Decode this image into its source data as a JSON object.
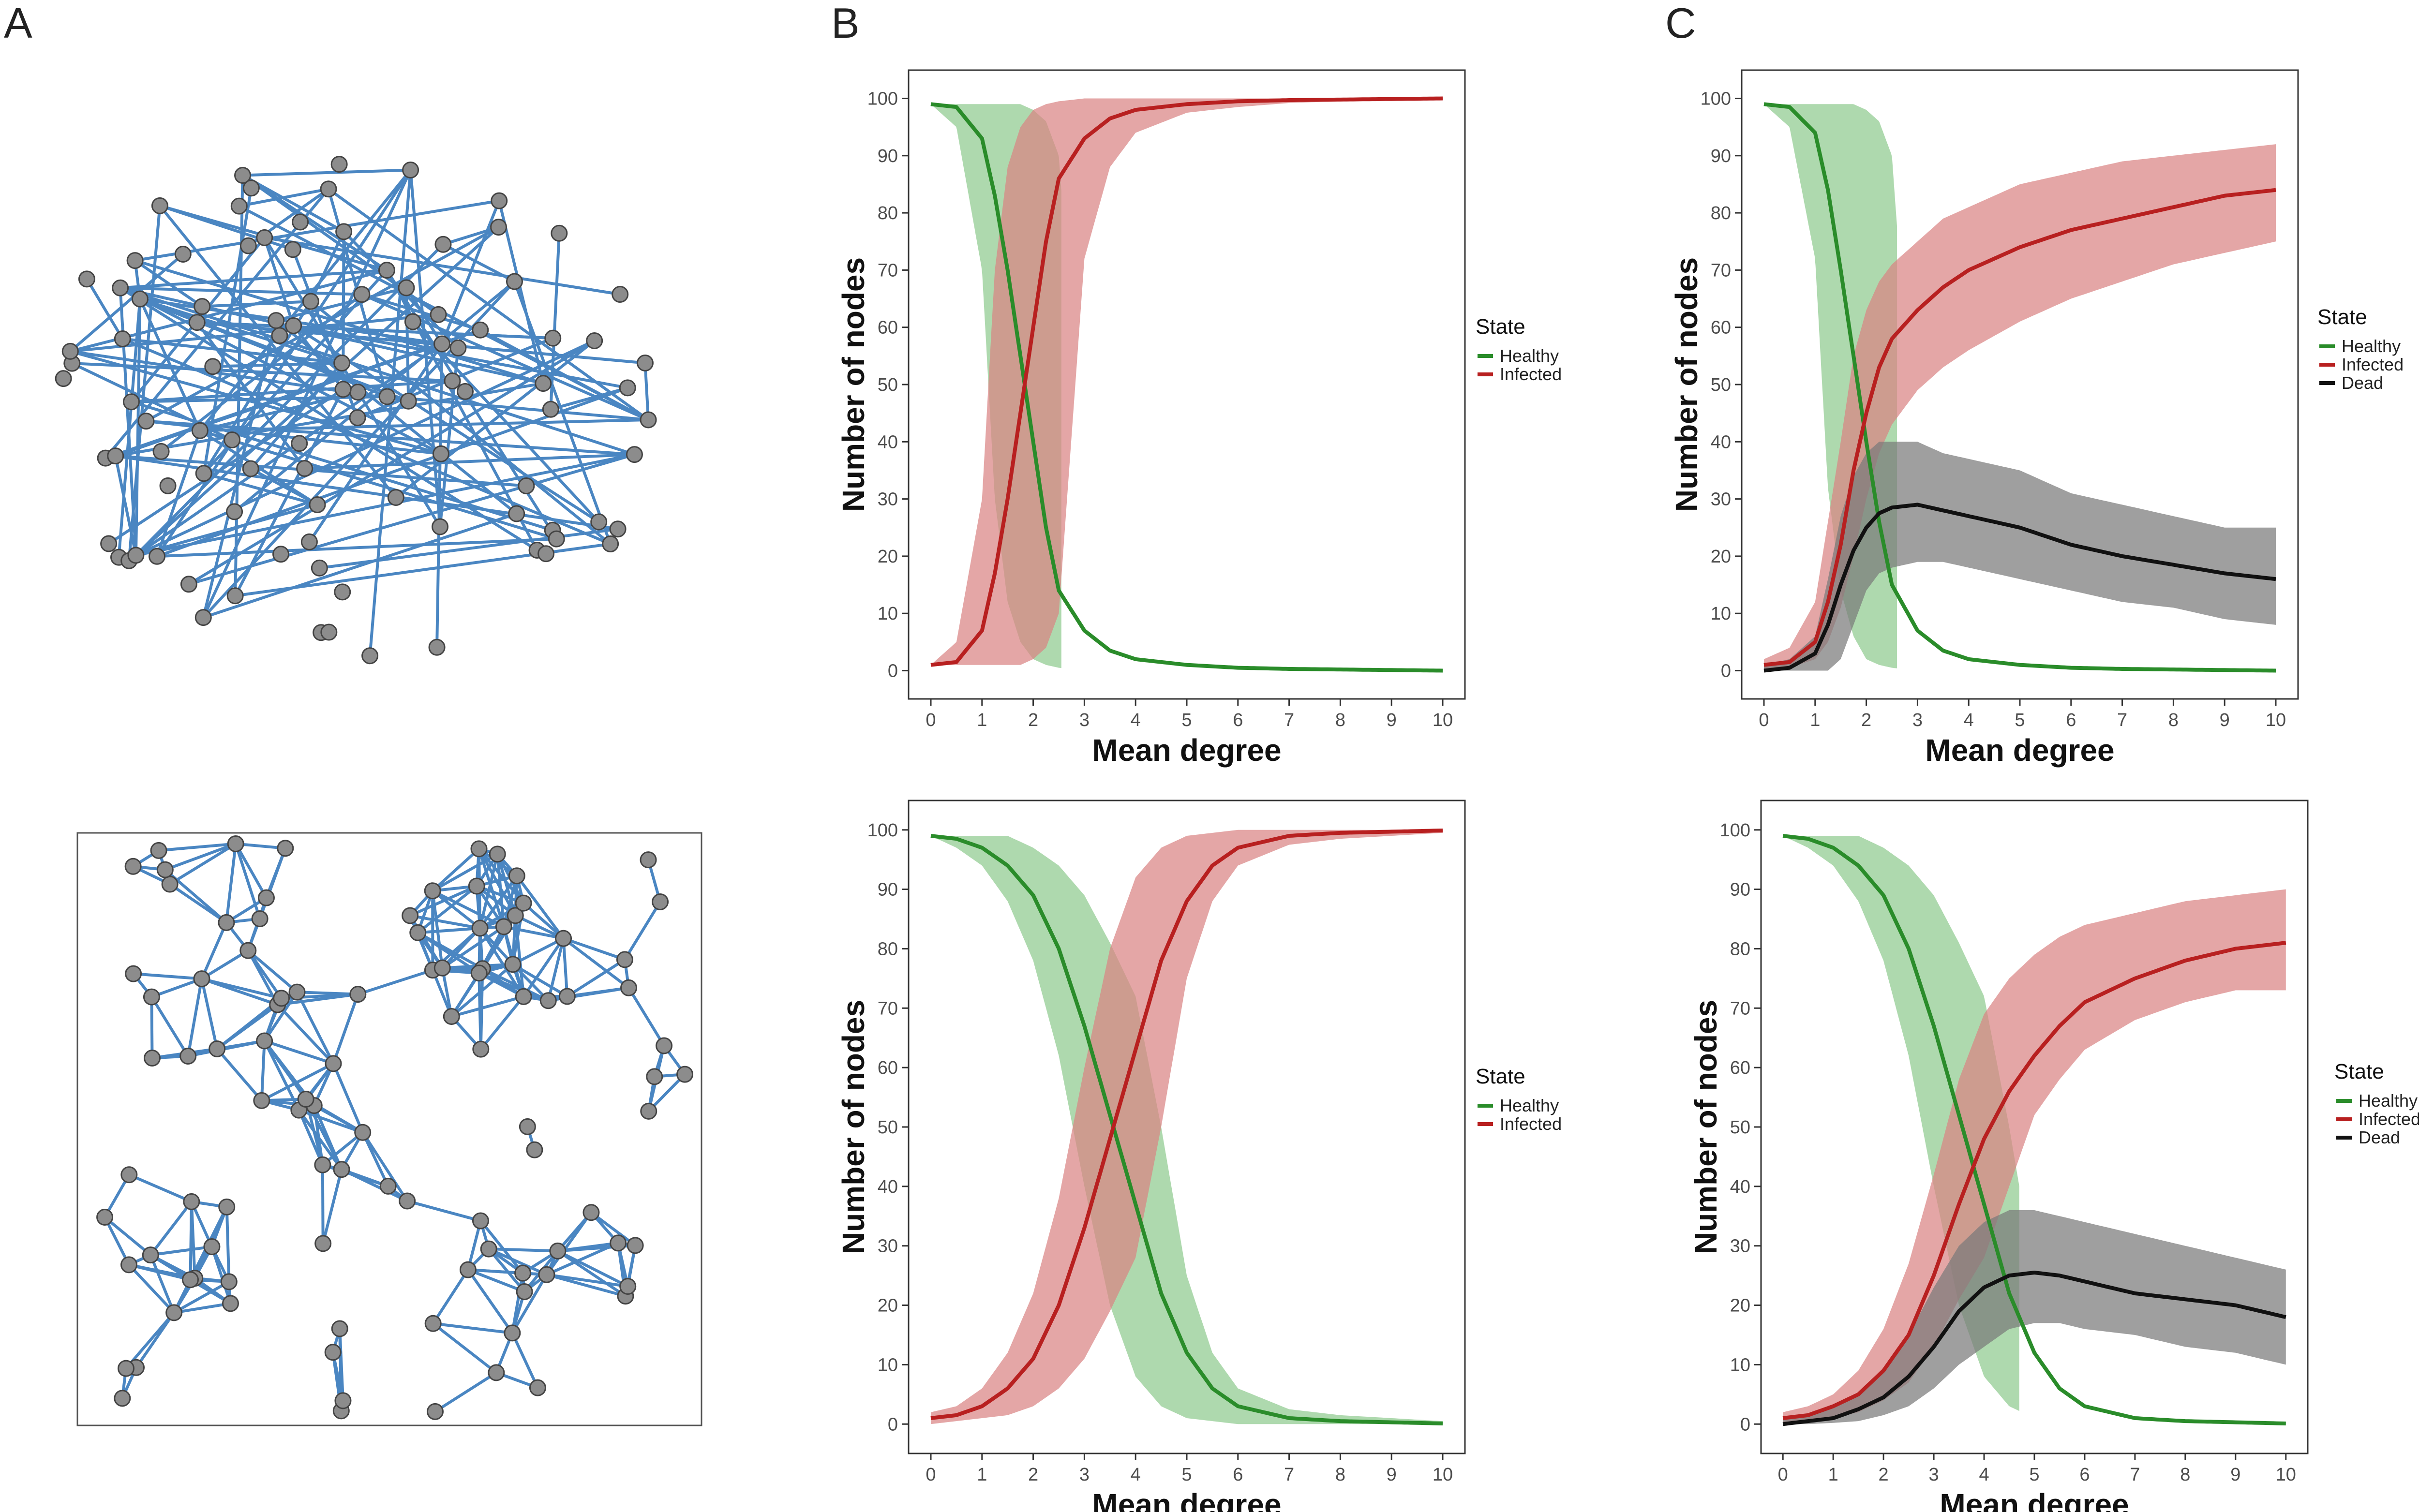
{
  "panel_labels": {
    "a": "A",
    "b": "B",
    "c": "C"
  },
  "colors": {
    "healthy": "#2a8c2a",
    "healthy_band": "#8fcb8f",
    "infected": "#b82020",
    "infected_band": "#d98484",
    "dead": "#111111",
    "dead_band": "#7a7a7a",
    "edge": "#4a86c2",
    "node": "#8c8c8c"
  },
  "networks": [
    {
      "name": "random network",
      "framed": false,
      "node_count": 100
    },
    {
      "name": "random geometric network",
      "framed": true,
      "node_count": 100
    }
  ],
  "chart_data": [
    {
      "id": "B-top",
      "type": "line",
      "title": "",
      "xlabel": "Mean degree",
      "ylabel": "Number of nodes",
      "xlim": [
        0,
        10
      ],
      "ylim": [
        0,
        100
      ],
      "xticks": [
        "0",
        "1",
        "2",
        "3",
        "4",
        "5",
        "6",
        "7",
        "8",
        "9",
        "10"
      ],
      "yticks": [
        "0",
        "10",
        "20",
        "30",
        "40",
        "50",
        "60",
        "70",
        "80",
        "90",
        "100"
      ],
      "legend_title": "State",
      "x": [
        0,
        0.5,
        1,
        1.25,
        1.5,
        1.75,
        2,
        2.25,
        2.5,
        3,
        3.5,
        4,
        5,
        6,
        7,
        8,
        9,
        10
      ],
      "series": [
        {
          "name": "Healthy",
          "key": "healthy",
          "values": [
            99,
            98.5,
            93,
            83,
            70,
            55,
            40,
            25,
            14,
            7,
            3.5,
            2,
            1,
            0.5,
            0.3,
            0.2,
            0.1,
            0
          ],
          "lower": [
            99,
            95,
            70,
            30,
            12,
            5,
            2,
            1,
            0.5,
            0,
            0,
            0,
            0,
            0,
            0,
            0,
            0,
            0
          ],
          "upper": [
            99,
            99,
            99,
            99,
            99,
            99,
            98,
            96,
            90,
            28,
            12,
            6,
            2.5,
            1.5,
            0.8,
            0.5,
            0.3,
            0.2
          ],
          "band_x": [
            0,
            2.55
          ]
        },
        {
          "name": "Infected",
          "key": "infected",
          "values": [
            1,
            1.5,
            7,
            17,
            30,
            45,
            60,
            75,
            86,
            93,
            96.5,
            98,
            99,
            99.5,
            99.7,
            99.8,
            99.9,
            100
          ],
          "lower": [
            1,
            1,
            1,
            1,
            1,
            1,
            2,
            4,
            10,
            72,
            88,
            94,
            97.5,
            98.5,
            99.2,
            99.5,
            99.7,
            99.8
          ],
          "upper": [
            1,
            5,
            30,
            70,
            88,
            95,
            98,
            99,
            99.5,
            100,
            100,
            100,
            100,
            100,
            100,
            100,
            100,
            100
          ],
          "band_x": [
            0,
            10
          ]
        }
      ]
    },
    {
      "id": "C-top",
      "type": "line",
      "title": "",
      "xlabel": "Mean degree",
      "ylabel": "Number of nodes",
      "xlim": [
        0,
        10
      ],
      "ylim": [
        0,
        100
      ],
      "xticks": [
        "0",
        "1",
        "2",
        "3",
        "4",
        "5",
        "6",
        "7",
        "8",
        "9",
        "10"
      ],
      "yticks": [
        "0",
        "10",
        "20",
        "30",
        "40",
        "50",
        "60",
        "70",
        "80",
        "90",
        "100"
      ],
      "legend_title": "State",
      "x": [
        0,
        0.5,
        1,
        1.25,
        1.5,
        1.75,
        2,
        2.25,
        2.5,
        3,
        3.5,
        4,
        5,
        6,
        7,
        8,
        9,
        10
      ],
      "series": [
        {
          "name": "Healthy",
          "key": "healthy",
          "values": [
            99,
            98.5,
            94,
            84,
            70,
            55,
            40,
            26,
            15,
            7,
            3.5,
            2,
            1,
            0.5,
            0.3,
            0.2,
            0.1,
            0
          ],
          "lower": [
            99,
            95,
            72,
            32,
            14,
            6,
            2,
            1,
            0.5,
            0,
            0,
            0,
            0,
            0,
            0,
            0,
            0,
            0
          ],
          "upper": [
            99,
            99,
            99,
            99,
            99,
            99,
            98,
            96,
            90,
            28,
            12,
            6,
            2.5,
            1.5,
            0.8,
            0.5,
            0.3,
            0.2
          ],
          "band_x": [
            0,
            2.6
          ]
        },
        {
          "name": "Infected",
          "key": "infected",
          "values": [
            1,
            1.5,
            5,
            12,
            22,
            35,
            45,
            53,
            58,
            63,
            67,
            70,
            74,
            77,
            79,
            81,
            83,
            84
          ],
          "lower": [
            0,
            0.5,
            2,
            5,
            11,
            20,
            30,
            38,
            43,
            49,
            53,
            56,
            61,
            65,
            68,
            71,
            73,
            75
          ],
          "upper": [
            2,
            4,
            12,
            26,
            40,
            55,
            63,
            68,
            71,
            75,
            79,
            81,
            85,
            87,
            89,
            90,
            91,
            92
          ],
          "band_x": [
            0,
            10
          ]
        },
        {
          "name": "Dead",
          "key": "dead",
          "values": [
            0,
            0.5,
            3,
            8,
            15,
            21,
            25,
            27.5,
            28.5,
            29,
            28,
            27,
            25,
            22,
            20,
            18.5,
            17,
            16
          ],
          "lower": [
            0,
            0,
            0,
            0,
            2,
            8,
            14,
            17,
            18,
            19,
            19,
            18,
            16,
            14,
            12,
            11,
            9,
            8
          ],
          "upper": [
            1,
            2,
            6,
            16,
            27,
            34,
            38,
            40,
            40,
            40,
            38,
            37,
            35,
            31,
            29,
            27,
            25,
            25
          ],
          "band_x": [
            0,
            10
          ]
        }
      ]
    },
    {
      "id": "B-bottom",
      "type": "line",
      "title": "",
      "xlabel": "Mean degree",
      "ylabel": "Number of nodes",
      "xlim": [
        0,
        10
      ],
      "ylim": [
        0,
        100
      ],
      "xticks": [
        "0",
        "1",
        "2",
        "3",
        "4",
        "5",
        "6",
        "7",
        "8",
        "9",
        "10"
      ],
      "yticks": [
        "0",
        "10",
        "20",
        "30",
        "40",
        "50",
        "60",
        "70",
        "80",
        "90",
        "100"
      ],
      "legend_title": "State",
      "x": [
        0,
        0.5,
        1,
        1.5,
        2,
        2.5,
        3,
        3.5,
        4,
        4.5,
        5,
        5.5,
        6,
        7,
        8,
        9,
        10
      ],
      "series": [
        {
          "name": "Healthy",
          "key": "healthy",
          "values": [
            99,
            98.5,
            97,
            94,
            89,
            80,
            67,
            52,
            37,
            22,
            12,
            6,
            3,
            1,
            0.5,
            0.3,
            0.1
          ],
          "lower": [
            99,
            97,
            94,
            88,
            78,
            62,
            40,
            20,
            8,
            3,
            1,
            0.5,
            0,
            0,
            0,
            0,
            0
          ],
          "upper": [
            99,
            99,
            99,
            99,
            97,
            94,
            89,
            81,
            72,
            50,
            25,
            12,
            6,
            2.5,
            1.5,
            1,
            0.5
          ],
          "band_x": [
            0,
            10
          ]
        },
        {
          "name": "Infected",
          "key": "infected",
          "values": [
            1,
            1.5,
            3,
            6,
            11,
            20,
            33,
            48,
            63,
            78,
            88,
            94,
            97,
            99,
            99.5,
            99.7,
            99.9
          ],
          "lower": [
            0,
            0.5,
            1,
            1.5,
            3,
            6,
            11,
            19,
            28,
            50,
            75,
            88,
            94,
            97.5,
            98.5,
            99,
            99.5
          ],
          "upper": [
            2,
            3,
            6,
            12,
            22,
            38,
            60,
            80,
            92,
            97,
            99,
            99.5,
            100,
            100,
            100,
            100,
            100
          ],
          "band_x": [
            0,
            10
          ]
        }
      ]
    },
    {
      "id": "C-bottom",
      "type": "line",
      "title": "",
      "xlabel": "Mean degree",
      "ylabel": "Number of nodes",
      "xlim": [
        0,
        10
      ],
      "ylim": [
        0,
        100
      ],
      "xticks": [
        "0",
        "1",
        "2",
        "3",
        "4",
        "5",
        "6",
        "7",
        "8",
        "9",
        "10"
      ],
      "yticks": [
        "0",
        "10",
        "20",
        "30",
        "40",
        "50",
        "60",
        "70",
        "80",
        "90",
        "100"
      ],
      "legend_title": "State",
      "x": [
        0,
        0.5,
        1,
        1.5,
        2,
        2.5,
        3,
        3.5,
        4,
        4.5,
        5,
        5.5,
        6,
        7,
        8,
        9,
        10
      ],
      "series": [
        {
          "name": "Healthy",
          "key": "healthy",
          "values": [
            99,
            98.5,
            97,
            94,
            89,
            80,
            67,
            52,
            37,
            22,
            12,
            6,
            3,
            1,
            0.5,
            0.3,
            0.1
          ],
          "lower": [
            99,
            97,
            94,
            88,
            78,
            62,
            40,
            20,
            8,
            3,
            1,
            0.5,
            0,
            0,
            0,
            0,
            0
          ],
          "upper": [
            99,
            99,
            99,
            99,
            97,
            94,
            89,
            81,
            72,
            50,
            25,
            12,
            6,
            2.5,
            1.5,
            1,
            0.5
          ],
          "band_x": [
            0,
            4.7
          ]
        },
        {
          "name": "Infected",
          "key": "infected",
          "values": [
            1,
            1.5,
            3,
            5,
            9,
            15,
            25,
            37,
            48,
            56,
            62,
            67,
            71,
            75,
            78,
            80,
            81
          ],
          "lower": [
            0,
            0.5,
            1,
            2,
            4,
            7,
            13,
            21,
            28,
            40,
            52,
            58,
            63,
            68,
            71,
            73,
            73
          ],
          "upper": [
            2,
            3,
            5,
            9,
            16,
            27,
            42,
            58,
            69,
            75,
            79,
            82,
            84,
            86,
            88,
            89,
            90
          ],
          "band_x": [
            0,
            10
          ]
        },
        {
          "name": "Dead",
          "key": "dead",
          "values": [
            0,
            0.5,
            1,
            2.5,
            4.5,
            8,
            13,
            19,
            23,
            25,
            25.5,
            25,
            24,
            22,
            21,
            20,
            18
          ],
          "lower": [
            0,
            0,
            0.2,
            0.5,
            1.5,
            3,
            6,
            10,
            13,
            16,
            17,
            17,
            16,
            15,
            13,
            12,
            10
          ],
          "upper": [
            1,
            1.5,
            3,
            5,
            9,
            15,
            23,
            30,
            34,
            36,
            36,
            35,
            34,
            32,
            30,
            28,
            26
          ],
          "band_x": [
            0,
            10
          ]
        }
      ]
    }
  ]
}
